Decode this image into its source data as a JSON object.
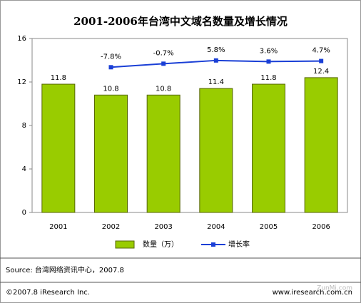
{
  "chart_data": {
    "type": "bar",
    "title": "2001-2006年台湾中文域名数量及增长情况",
    "categories": [
      "2001",
      "2002",
      "2003",
      "2004",
      "2005",
      "2006"
    ],
    "series": [
      {
        "name": "数量（万）",
        "color": "#99cc00",
        "values": [
          11.8,
          10.8,
          10.8,
          11.4,
          11.8,
          12.4
        ]
      },
      {
        "name": "增长率",
        "type": "line",
        "axis": "y2",
        "color": "#1a3fd6",
        "values": [
          null,
          -7.8,
          -0.7,
          5.8,
          3.6,
          4.7
        ],
        "value_labels": [
          null,
          "-7.8%",
          "-0.7%",
          "5.8%",
          "3.6%",
          "4.7%"
        ]
      }
    ],
    "ylim": [
      0,
      16
    ],
    "yticks": [
      0,
      4,
      8,
      12,
      16
    ],
    "y2lim": [
      -300,
      50
    ],
    "grid": false
  },
  "source": "Source:  台湾网络资讯中心，2007.8",
  "footer_left": "©2007.8  iResearch Inc.",
  "footer_right": "www.iresearch.com.cn",
  "watermark": "ZunMi.com"
}
